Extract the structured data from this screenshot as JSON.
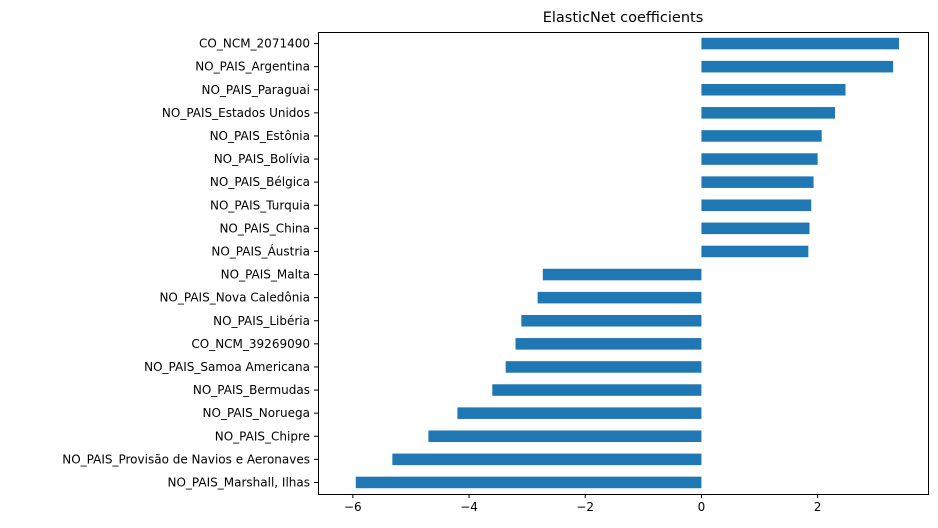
{
  "chart_data": {
    "type": "bar",
    "orientation": "horizontal",
    "title": "ElasticNet coefficients",
    "xlabel": "",
    "ylabel": "",
    "xlim": [
      -6.6,
      3.9
    ],
    "xticks": [
      -6,
      -4,
      -2,
      0,
      2
    ],
    "xtick_labels": [
      "−6",
      "−4",
      "−2",
      "0",
      "2"
    ],
    "grid": false,
    "bar_color": "#1f77b4",
    "categories": [
      "CO_NCM_2071400",
      "NO_PAIS_Argentina",
      "NO_PAIS_Paraguai",
      "NO_PAIS_Estados Unidos",
      "NO_PAIS_Estônia",
      "NO_PAIS_Bolívia",
      "NO_PAIS_Bélgica",
      "NO_PAIS_Turquia",
      "NO_PAIS_China",
      "NO_PAIS_Áustria",
      "NO_PAIS_Malta",
      "NO_PAIS_Nova Caledônia",
      "NO_PAIS_Libéria",
      "CO_NCM_39269090",
      "NO_PAIS_Samoa Americana",
      "NO_PAIS_Bermudas",
      "NO_PAIS_Noruega",
      "NO_PAIS_Chipre",
      "NO_PAIS_Provisão de Navios e Aeronaves",
      "NO_PAIS_Marshall, Ilhas"
    ],
    "values": [
      3.4,
      3.3,
      2.48,
      2.3,
      2.07,
      2.0,
      1.93,
      1.89,
      1.86,
      1.84,
      -2.73,
      -2.82,
      -3.1,
      -3.2,
      -3.37,
      -3.6,
      -4.2,
      -4.7,
      -5.32,
      -5.95
    ]
  }
}
